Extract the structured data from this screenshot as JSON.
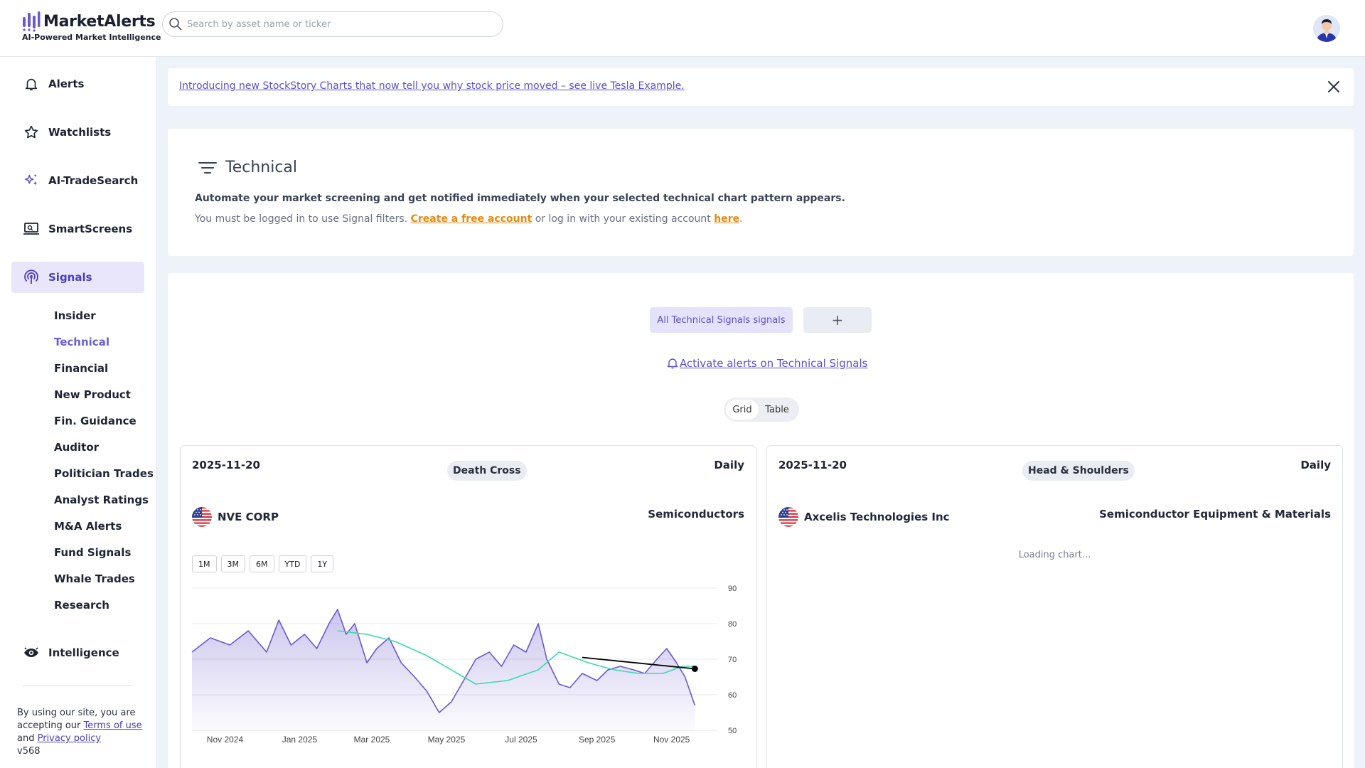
{
  "brand": {
    "name": "MarketAlerts",
    "tagline": "AI-Powered Market Intelligence"
  },
  "search": {
    "placeholder": "Search by asset name or ticker"
  },
  "sidebar": {
    "items": [
      {
        "label": "Alerts",
        "icon": "bell-icon"
      },
      {
        "label": "Watchlists",
        "icon": "star-icon"
      },
      {
        "label": "AI-TradeSearch",
        "icon": "sparkle-icon"
      },
      {
        "label": "SmartScreens",
        "icon": "laptop-icon"
      },
      {
        "label": "Signals",
        "icon": "broadcast-icon",
        "active": true
      },
      {
        "label": "Intelligence",
        "icon": "eye-icon"
      }
    ],
    "subitems": [
      "Insider",
      "Technical",
      "Financial",
      "New Product",
      "Fin. Guidance",
      "Auditor",
      "Politician Trades",
      "Analyst Ratings",
      "M&A Alerts",
      "Fund Signals",
      "Whale Trades",
      "Research"
    ],
    "active_sub": "Technical",
    "footer": {
      "line1": "By using our site, you are accepting our",
      "terms": "Terms of use",
      "and": "and",
      "privacy": "Privacy policy",
      "version": "v568"
    }
  },
  "banner": {
    "text": "Introducing new StockStory Charts that now tell you why stock price moved – see live Tesla Example."
  },
  "technical": {
    "title": "Technical",
    "description": "Automate your market screening and get notified immediately when your selected technical chart pattern appears.",
    "login_prefix": "You must be logged in to use Signal filters.",
    "create_account": "Create a free account",
    "login_middle": "or log in with your existing account",
    "here": "here",
    "login_suffix": "."
  },
  "signals": {
    "all_label": "All Technical Signals signals",
    "add_label": "+",
    "activate_label": "Activate alerts on Technical Signals",
    "view_grid": "Grid",
    "view_table": "Table"
  },
  "cards": [
    {
      "date": "2025-11-20",
      "pattern": "Death Cross",
      "frequency": "Daily",
      "company": "NVE CORP",
      "sector": "Semiconductors",
      "ranges": [
        "1M",
        "3M",
        "6M",
        "YTD",
        "1Y"
      ]
    },
    {
      "date": "2025-11-20",
      "pattern": "Head & Shoulders",
      "frequency": "Daily",
      "company": "Axcelis Technologies Inc",
      "sector": "Semiconductor Equipment & Materials",
      "loading": "Loading chart..."
    }
  ],
  "colors": {
    "accent": "#5b4fd0",
    "price_line": "#6a5acd",
    "ma_line": "#3fd8b0",
    "trend_line": "#000000",
    "orange_link": "#e58a12"
  },
  "chart_data": {
    "type": "line",
    "xlabel": "",
    "ylabel": "",
    "x_ticks": [
      "Nov 2024",
      "Jan 2025",
      "Mar 2025",
      "May 2025",
      "Jul 2025",
      "Sep 2025",
      "Nov 2025"
    ],
    "y_ticks": [
      50,
      60,
      70,
      80,
      90
    ],
    "ylim": [
      50,
      90
    ],
    "xlim": [
      "2024-10-05",
      "2025-12-20"
    ],
    "grid": true,
    "series": [
      {
        "style": "area",
        "points": [
          [
            "2024-10-05",
            72
          ],
          [
            "2024-10-20",
            76
          ],
          [
            "2024-11-05",
            74
          ],
          [
            "2024-11-20",
            78
          ],
          [
            "2024-12-05",
            72
          ],
          [
            "2024-12-15",
            81
          ],
          [
            "2024-12-25",
            74
          ],
          [
            "2025-01-05",
            77
          ],
          [
            "2025-01-15",
            73
          ],
          [
            "2025-01-25",
            80
          ],
          [
            "2025-02-01",
            84
          ],
          [
            "2025-02-08",
            77
          ],
          [
            "2025-02-15",
            80
          ],
          [
            "2025-02-25",
            69
          ],
          [
            "2025-03-05",
            73
          ],
          [
            "2025-03-15",
            76
          ],
          [
            "2025-03-25",
            69
          ],
          [
            "2025-04-05",
            65
          ],
          [
            "2025-04-15",
            61
          ],
          [
            "2025-04-25",
            55
          ],
          [
            "2025-05-05",
            58
          ],
          [
            "2025-05-15",
            64
          ],
          [
            "2025-05-25",
            70
          ],
          [
            "2025-06-05",
            72
          ],
          [
            "2025-06-15",
            68
          ],
          [
            "2025-06-25",
            74
          ],
          [
            "2025-07-05",
            72
          ],
          [
            "2025-07-15",
            80
          ],
          [
            "2025-07-22",
            70
          ],
          [
            "2025-08-01",
            63
          ],
          [
            "2025-08-10",
            62
          ],
          [
            "2025-08-20",
            66
          ],
          [
            "2025-09-01",
            64
          ],
          [
            "2025-09-10",
            67
          ],
          [
            "2025-09-20",
            68
          ],
          [
            "2025-10-01",
            67
          ],
          [
            "2025-10-10",
            66
          ],
          [
            "2025-10-20",
            70
          ],
          [
            "2025-10-28",
            73
          ],
          [
            "2025-11-05",
            69
          ],
          [
            "2025-11-12",
            65
          ],
          [
            "2025-11-20",
            57
          ]
        ]
      },
      {
        "style": "line",
        "points": [
          [
            "2025-02-01",
            78
          ],
          [
            "2025-02-25",
            77
          ],
          [
            "2025-03-20",
            75
          ],
          [
            "2025-04-15",
            71
          ],
          [
            "2025-05-10",
            66
          ],
          [
            "2025-05-25",
            63
          ],
          [
            "2025-06-20",
            64
          ],
          [
            "2025-07-15",
            67
          ],
          [
            "2025-08-01",
            72
          ],
          [
            "2025-08-25",
            69
          ],
          [
            "2025-09-15",
            67
          ],
          [
            "2025-10-05",
            66
          ],
          [
            "2025-10-25",
            66
          ],
          [
            "2025-11-10",
            68
          ],
          [
            "2025-11-20",
            68
          ]
        ]
      },
      {
        "style": "trendline",
        "points": [
          [
            "2025-08-20",
            70.5
          ],
          [
            "2025-11-20",
            67.3
          ]
        ]
      }
    ]
  }
}
